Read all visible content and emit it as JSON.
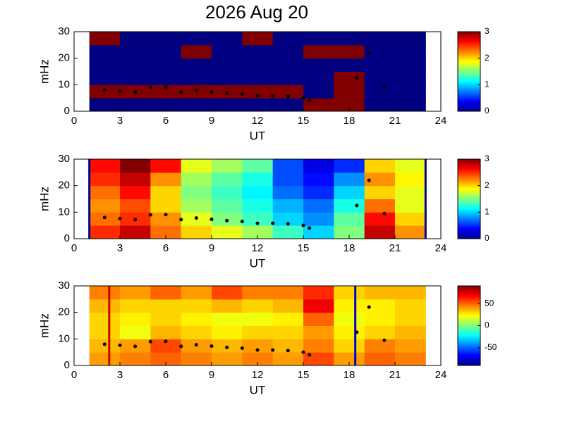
{
  "chart_data": [
    {
      "type": "heatmap",
      "title": "2026 Aug 20",
      "xlabel": "UT",
      "ylabel": "mHz",
      "xlim": [
        0,
        24
      ],
      "ylim": [
        0,
        30
      ],
      "xticks": [
        0,
        3,
        6,
        9,
        12,
        15,
        18,
        21,
        24
      ],
      "yticks": [
        0,
        10,
        20,
        30
      ],
      "x": [
        1,
        3,
        5,
        7,
        9,
        11,
        13,
        15,
        17,
        19,
        21,
        23
      ],
      "y": [
        0,
        5,
        10,
        15,
        20,
        25,
        30
      ],
      "z": [
        [
          0,
          0,
          0,
          0,
          0,
          0,
          0,
          3,
          3,
          0,
          0
        ],
        [
          3,
          3,
          3,
          3,
          3,
          3,
          3,
          0,
          3,
          0,
          0
        ],
        [
          0,
          0,
          0,
          0,
          0,
          0,
          0,
          0,
          3,
          0,
          0
        ],
        [
          0,
          0,
          0,
          0,
          0,
          0,
          0,
          0,
          0,
          0,
          0
        ],
        [
          0,
          0,
          0,
          3,
          0,
          0,
          0,
          3,
          3,
          0,
          0
        ],
        [
          3,
          0,
          0,
          0,
          0,
          3,
          0,
          0,
          0,
          0,
          0
        ]
      ],
      "clim": [
        0,
        3
      ],
      "cticks": [
        0,
        1,
        2,
        3
      ],
      "ridge": {
        "color": "#000000",
        "x": [
          2,
          3,
          4,
          5,
          6,
          7,
          8,
          9,
          10,
          11,
          12,
          13,
          14,
          15,
          15.4,
          18.5,
          19.3,
          20.3
        ],
        "values": [
          8,
          7.6,
          7.2,
          9,
          9.1,
          7.2,
          7.8,
          7.3,
          6.8,
          6.5,
          5.8,
          5.8,
          5.6,
          5,
          4,
          12.5,
          22,
          9.5
        ]
      },
      "vlines": []
    },
    {
      "type": "heatmap",
      "xlabel": "UT",
      "ylabel": "mHz",
      "xlim": [
        0,
        24
      ],
      "ylim": [
        0,
        30
      ],
      "xticks": [
        0,
        3,
        6,
        9,
        12,
        15,
        18,
        21,
        24
      ],
      "yticks": [
        0,
        10,
        20,
        30
      ],
      "x": [
        1,
        3,
        5,
        7,
        9,
        11,
        13,
        15,
        17,
        19,
        21,
        23
      ],
      "y": [
        0,
        5,
        10,
        15,
        20,
        25,
        30
      ],
      "z": [
        [
          2.5,
          2.8,
          2.3,
          2,
          1.8,
          1.6,
          1.3,
          1,
          1.5,
          2.8,
          2.2
        ],
        [
          2.3,
          2.5,
          2.2,
          1.8,
          1.5,
          1.3,
          1,
          0.8,
          1.4,
          2.6,
          2
        ],
        [
          2.2,
          2.4,
          2,
          1.6,
          1.4,
          1.2,
          0.9,
          0.7,
          1.2,
          2.3,
          1.8
        ],
        [
          2.3,
          2.6,
          2,
          1.5,
          1.3,
          1.1,
          0.7,
          0.5,
          1,
          2,
          1.8
        ],
        [
          2.5,
          2.8,
          2.2,
          1.6,
          1.4,
          1.2,
          0.6,
          0.4,
          0.8,
          2.2,
          1.9
        ],
        [
          2.6,
          3,
          2.6,
          1.8,
          1.6,
          1.4,
          0.6,
          0.3,
          0.5,
          2,
          1.8
        ]
      ],
      "clim": [
        0,
        3
      ],
      "cticks": [
        0,
        1,
        2,
        3
      ],
      "ridge": {
        "color": "#000000",
        "x": [
          2,
          3,
          4,
          5,
          6,
          7,
          8,
          9,
          10,
          11,
          12,
          13,
          14,
          15,
          15.4,
          18.5,
          19.3,
          20.3
        ],
        "values": [
          8,
          7.6,
          7.2,
          9,
          9.1,
          7.2,
          7.8,
          7.3,
          6.8,
          6.5,
          5.8,
          5.8,
          5.6,
          5,
          4,
          12.5,
          22,
          9.5
        ]
      },
      "vlines": [
        {
          "x": 1,
          "color": "#00008f"
        },
        {
          "x": 23,
          "color": "#00008f"
        }
      ]
    },
    {
      "type": "heatmap",
      "xlabel": "UT",
      "ylabel": "mHz",
      "xlim": [
        0,
        24
      ],
      "ylim": [
        0,
        30
      ],
      "xticks": [
        0,
        3,
        6,
        9,
        12,
        15,
        18,
        21,
        24
      ],
      "yticks": [
        0,
        10,
        20,
        30
      ],
      "x": [
        1,
        3,
        5,
        7,
        9,
        11,
        13,
        15,
        17,
        19,
        21,
        23
      ],
      "y": [
        0,
        5,
        10,
        15,
        20,
        25,
        30
      ],
      "z": [
        [
          40,
          45,
          50,
          45,
          40,
          45,
          40,
          55,
          40,
          50,
          45
        ],
        [
          35,
          40,
          55,
          40,
          35,
          40,
          35,
          45,
          30,
          45,
          40
        ],
        [
          30,
          20,
          35,
          30,
          25,
          30,
          30,
          40,
          25,
          30,
          35
        ],
        [
          30,
          25,
          30,
          25,
          20,
          20,
          25,
          50,
          20,
          25,
          30
        ],
        [
          35,
          30,
          30,
          30,
          35,
          30,
          35,
          70,
          25,
          25,
          30
        ],
        [
          45,
          40,
          50,
          40,
          55,
          45,
          45,
          60,
          30,
          35,
          35
        ]
      ],
      "clim": [
        -90,
        90
      ],
      "cticks": [
        -50,
        0,
        50
      ],
      "ridge": {
        "color": "#000000",
        "x": [
          2,
          3,
          4,
          5,
          6,
          7,
          8,
          9,
          10,
          11,
          12,
          13,
          14,
          15,
          15.4,
          18.5,
          19.3,
          20.3
        ],
        "values": [
          8,
          7.6,
          7.2,
          9,
          9.1,
          7.2,
          7.8,
          7.3,
          6.8,
          6.5,
          5.8,
          5.8,
          5.6,
          5,
          4,
          12.5,
          22,
          9.5
        ]
      },
      "vlines": [
        {
          "x": 2.3,
          "color": "#cc0000"
        },
        {
          "x": 18.4,
          "color": "#0000cc"
        }
      ]
    }
  ]
}
